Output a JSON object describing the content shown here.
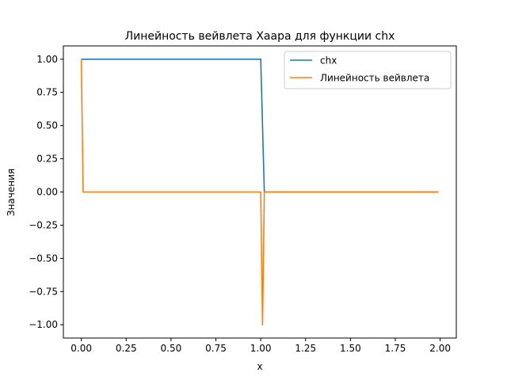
{
  "chart_data": {
    "type": "line",
    "title": "Линейность вейвлета Хаара для функции chx",
    "xlabel": "x",
    "ylabel": "Значения",
    "xlim": [
      -0.1,
      2.09
    ],
    "ylim": [
      -1.1,
      1.1
    ],
    "xticks": [
      0.0,
      0.25,
      0.5,
      0.75,
      1.0,
      1.25,
      1.5,
      1.75,
      2.0
    ],
    "xtick_labels": [
      "0.00",
      "0.25",
      "0.50",
      "0.75",
      "1.00",
      "1.25",
      "1.50",
      "1.75",
      "2.00"
    ],
    "yticks": [
      -1.0,
      -0.75,
      -0.5,
      -0.25,
      0.0,
      0.25,
      0.5,
      0.75,
      1.0
    ],
    "ytick_labels": [
      "−1.00",
      "−0.75",
      "−0.50",
      "−0.25",
      "0.00",
      "0.25",
      "0.50",
      "0.75",
      "1.00"
    ],
    "grid": false,
    "legend": "top-right",
    "series": [
      {
        "name": "chx",
        "color": "#1f77b4",
        "x": [
          0.0,
          1.0,
          1.01,
          1.02,
          1.99
        ],
        "y": [
          1.0,
          1.0,
          0.5,
          0.0,
          0.0
        ]
      },
      {
        "name": "Линейность вейвлета",
        "color": "#ff7f0e",
        "x": [
          0.0,
          0.01,
          1.0,
          1.01,
          1.02,
          1.99
        ],
        "y": [
          1.0,
          0.0,
          0.0,
          -1.0,
          0.0,
          0.0
        ]
      }
    ]
  }
}
